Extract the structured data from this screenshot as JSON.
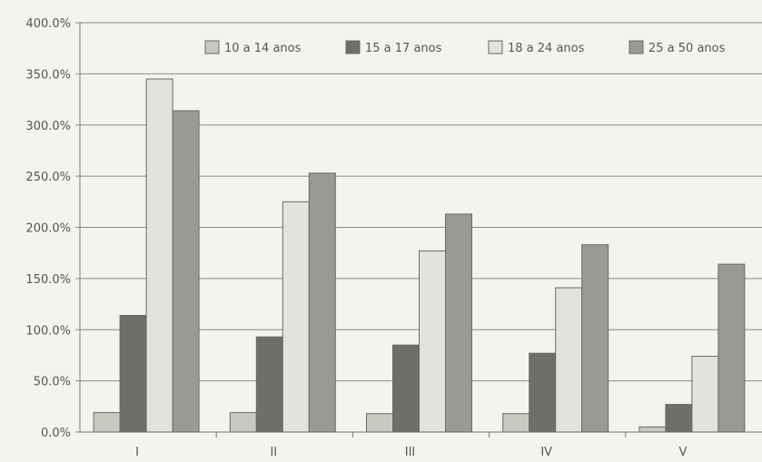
{
  "chart_data": {
    "type": "bar",
    "title": "",
    "xlabel": "",
    "ylabel": "",
    "categories": [
      "I",
      "II",
      "III",
      "IV",
      "V"
    ],
    "series": [
      {
        "name": "10 a 14 anos",
        "values": [
          19,
          19,
          18,
          18,
          5
        ]
      },
      {
        "name": "15 a 17 anos",
        "values": [
          114,
          93,
          85,
          77,
          27
        ]
      },
      {
        "name": "18 a 24 anos",
        "values": [
          345,
          225,
          177,
          141,
          74
        ]
      },
      {
        "name": "25 a 50 anos",
        "values": [
          314,
          253,
          213,
          183,
          164
        ]
      }
    ],
    "ylim": [
      0,
      400
    ],
    "yticks": [
      0,
      50,
      100,
      150,
      200,
      250,
      300,
      350,
      400
    ],
    "ytick_labels": [
      "0.0%",
      "50.0%",
      "100.0%",
      "150.0%",
      "200.0%",
      "250.0%",
      "300.0%",
      "350.0%",
      "400.0%"
    ],
    "grid": true,
    "legend_position": "top-right",
    "colors": [
      "#c9c9c2",
      "#6f6f6a",
      "#e3e3dd",
      "#9a9a94"
    ]
  }
}
